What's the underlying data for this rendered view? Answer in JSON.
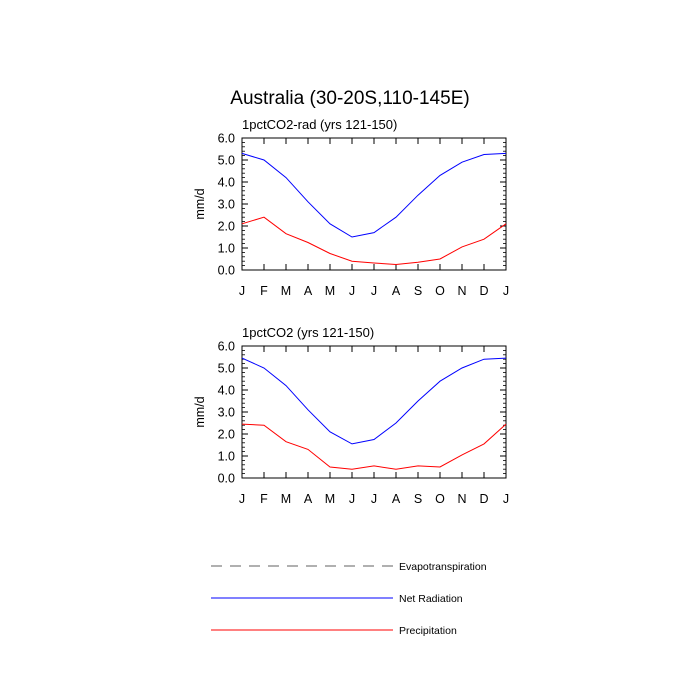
{
  "figure": {
    "title": "Australia (30-20S,110-145E)"
  },
  "chart_data": [
    {
      "type": "line",
      "title": "1pctCO2-rad (yrs 121-150)",
      "xlabel": "",
      "ylabel": "mm/d",
      "categories": [
        "J",
        "F",
        "M",
        "A",
        "M",
        "J",
        "J",
        "A",
        "S",
        "O",
        "N",
        "D",
        "J"
      ],
      "ylim": [
        0,
        6
      ],
      "yticks": [
        "0.0",
        "1.0",
        "2.0",
        "3.0",
        "4.0",
        "5.0",
        "6.0"
      ],
      "grid": false,
      "series": [
        {
          "name": "Net Radiation",
          "color": "#0000ff",
          "values": [
            5.3,
            5.0,
            4.2,
            3.1,
            2.1,
            1.5,
            1.7,
            2.4,
            3.4,
            4.3,
            4.9,
            5.25,
            5.3
          ]
        },
        {
          "name": "Precipitation",
          "color": "#ff0000",
          "values": [
            2.1,
            2.4,
            1.65,
            1.25,
            0.75,
            0.4,
            0.32,
            0.25,
            0.35,
            0.5,
            1.05,
            1.4,
            2.1
          ]
        }
      ]
    },
    {
      "type": "line",
      "title": "1pctCO2 (yrs 121-150)",
      "xlabel": "",
      "ylabel": "mm/d",
      "categories": [
        "J",
        "F",
        "M",
        "A",
        "M",
        "J",
        "J",
        "A",
        "S",
        "O",
        "N",
        "D",
        "J"
      ],
      "ylim": [
        0,
        6
      ],
      "yticks": [
        "0.0",
        "1.0",
        "2.0",
        "3.0",
        "4.0",
        "5.0",
        "6.0"
      ],
      "grid": false,
      "series": [
        {
          "name": "Net Radiation",
          "color": "#0000ff",
          "values": [
            5.45,
            5.0,
            4.2,
            3.1,
            2.1,
            1.55,
            1.75,
            2.5,
            3.5,
            4.4,
            5.0,
            5.4,
            5.45
          ]
        },
        {
          "name": "Precipitation",
          "color": "#ff0000",
          "values": [
            2.45,
            2.4,
            1.65,
            1.3,
            0.5,
            0.4,
            0.55,
            0.4,
            0.55,
            0.5,
            1.05,
            1.55,
            2.45
          ]
        }
      ]
    }
  ],
  "legend": [
    {
      "label": "Evapotranspiration",
      "color": "#808080",
      "style": "dashed"
    },
    {
      "label": "Net Radiation",
      "color": "#0000ff",
      "style": "solid"
    },
    {
      "label": "Precipitation",
      "color": "#ff0000",
      "style": "solid"
    }
  ]
}
